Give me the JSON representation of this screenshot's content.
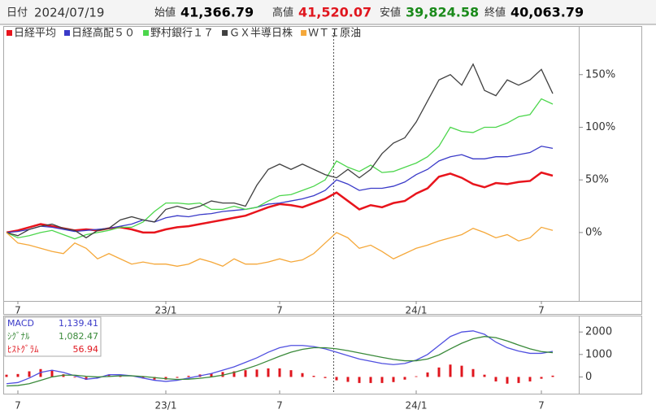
{
  "header": {
    "date_label": "日付",
    "date": "2024/07/19",
    "items": [
      {
        "label": "始値",
        "value": "41,366.79",
        "color": "#000000"
      },
      {
        "label": "高値",
        "value": "41,520.07",
        "color": "#e0161e"
      },
      {
        "label": "安値",
        "value": "39,824.58",
        "color": "#1a8a1a"
      },
      {
        "label": "終値",
        "value": "40,063.79",
        "color": "#000000"
      }
    ]
  },
  "chart_data": [
    {
      "type": "line",
      "categories": [
        null,
        "7",
        null,
        null,
        null,
        null,
        null,
        null,
        null,
        null,
        null,
        null,
        null,
        null,
        "23/1",
        null,
        null,
        null,
        null,
        null,
        null,
        null,
        null,
        null,
        "7",
        null,
        null,
        null,
        null,
        null,
        null,
        null,
        null,
        null,
        null,
        null,
        "24/1",
        null,
        null,
        null,
        null,
        null,
        null,
        null,
        null,
        null,
        null,
        "7",
        null
      ],
      "ylim": [
        -65,
        190
      ],
      "yticks": [
        {
          "value": 150,
          "label": "150%"
        },
        {
          "value": 100,
          "label": "100%"
        },
        {
          "value": 50,
          "label": "50%"
        },
        {
          "value": 0,
          "label": "0%"
        }
      ],
      "series": [
        {
          "name": "日経平均",
          "color": "#e8141c",
          "values": [
            0,
            2,
            5,
            8,
            6,
            4,
            2,
            3,
            2,
            4,
            5,
            3,
            0,
            0,
            3,
            5,
            6,
            8,
            10,
            12,
            14,
            16,
            20,
            24,
            27,
            26,
            24,
            28,
            32,
            38,
            30,
            22,
            26,
            24,
            28,
            30,
            37,
            42,
            53,
            56,
            52,
            46,
            43,
            47,
            46,
            48,
            49,
            57,
            54
          ]
        },
        {
          "name": "日経高配５０",
          "color": "#3a3ac8",
          "values": [
            0,
            1,
            3,
            6,
            5,
            3,
            1,
            2,
            3,
            4,
            6,
            8,
            12,
            10,
            14,
            16,
            15,
            17,
            18,
            20,
            21,
            22,
            24,
            27,
            28,
            30,
            32,
            35,
            40,
            50,
            46,
            40,
            42,
            42,
            44,
            48,
            55,
            60,
            68,
            72,
            74,
            70,
            70,
            72,
            72,
            74,
            76,
            82,
            80
          ]
        },
        {
          "name": "野村銀行１７",
          "color": "#4cd64c",
          "values": [
            0,
            -5,
            -3,
            0,
            2,
            -2,
            -6,
            -2,
            0,
            2,
            5,
            5,
            10,
            20,
            28,
            28,
            27,
            28,
            22,
            22,
            25,
            22,
            24,
            30,
            35,
            36,
            40,
            44,
            50,
            68,
            62,
            58,
            64,
            57,
            58,
            62,
            66,
            72,
            82,
            100,
            96,
            95,
            100,
            100,
            104,
            110,
            112,
            127,
            122
          ]
        },
        {
          "name": "ＧＸ半導日株",
          "color": "#404040",
          "values": [
            0,
            -3,
            3,
            6,
            8,
            4,
            2,
            -5,
            2,
            4,
            12,
            15,
            12,
            10,
            22,
            25,
            22,
            25,
            30,
            28,
            28,
            25,
            45,
            60,
            65,
            60,
            65,
            60,
            55,
            52,
            60,
            52,
            60,
            75,
            85,
            90,
            105,
            125,
            145,
            150,
            140,
            160,
            135,
            130,
            145,
            140,
            145,
            155,
            132
          ]
        },
        {
          "name": "ＷＴＩ原油",
          "color": "#f5a83a",
          "values": [
            0,
            -10,
            -12,
            -15,
            -18,
            -20,
            -10,
            -15,
            -25,
            -20,
            -25,
            -30,
            -28,
            -30,
            -30,
            -32,
            -30,
            -25,
            -28,
            -32,
            -25,
            -30,
            -30,
            -28,
            -25,
            -28,
            -26,
            -20,
            -10,
            0,
            -5,
            -15,
            -12,
            -18,
            -25,
            -20,
            -15,
            -12,
            -8,
            -5,
            -2,
            4,
            0,
            -5,
            -2,
            -8,
            -5,
            5,
            2
          ]
        }
      ]
    },
    {
      "type": "macd",
      "categories": [
        null,
        "7",
        null,
        null,
        null,
        null,
        null,
        null,
        null,
        null,
        null,
        null,
        null,
        null,
        "23/1",
        null,
        null,
        null,
        null,
        null,
        null,
        null,
        null,
        null,
        "7",
        null,
        null,
        null,
        null,
        null,
        null,
        null,
        null,
        null,
        null,
        null,
        "24/1",
        null,
        null,
        null,
        null,
        null,
        null,
        null,
        null,
        null,
        null,
        "7",
        null
      ],
      "ylim": [
        -600,
        2550
      ],
      "yticks": [
        2000,
        1000,
        0
      ],
      "legend": [
        {
          "name": "MACD",
          "value": "1,139.41",
          "color": "#3a3ac8"
        },
        {
          "name": "ｼｸﾞﾅﾙ",
          "value": "1,082.47",
          "color": "#3a8a3a"
        },
        {
          "name": "ﾋｽﾄｸﾞﾗﾑ",
          "value": "56.94",
          "color": "#e0161e"
        }
      ],
      "series": [
        {
          "kind": "line",
          "color": "#5050e0",
          "values": [
            -300,
            -250,
            -50,
            200,
            300,
            200,
            50,
            -100,
            -50,
            100,
            100,
            50,
            -50,
            -150,
            -200,
            -150,
            -50,
            50,
            150,
            300,
            450,
            650,
            850,
            1100,
            1300,
            1400,
            1400,
            1350,
            1250,
            1100,
            950,
            800,
            700,
            600,
            550,
            600,
            750,
            1000,
            1400,
            1800,
            2000,
            2050,
            1900,
            1550,
            1300,
            1150,
            1050,
            1050,
            1139
          ]
        },
        {
          "kind": "line",
          "color": "#3a8a3a",
          "values": [
            -400,
            -380,
            -300,
            -150,
            0,
            80,
            80,
            30,
            0,
            20,
            50,
            50,
            20,
            -30,
            -80,
            -110,
            -100,
            -60,
            0,
            80,
            200,
            350,
            520,
            720,
            920,
            1100,
            1230,
            1300,
            1300,
            1250,
            1170,
            1070,
            970,
            870,
            780,
            720,
            720,
            800,
            980,
            1250,
            1500,
            1700,
            1800,
            1750,
            1600,
            1420,
            1250,
            1130,
            1082
          ]
        },
        {
          "kind": "bar",
          "color": "#e0161e",
          "values": [
            100,
            130,
            250,
            350,
            300,
            120,
            -30,
            -130,
            -50,
            80,
            50,
            0,
            -70,
            -120,
            -120,
            -40,
            50,
            110,
            150,
            220,
            250,
            300,
            330,
            380,
            380,
            300,
            170,
            50,
            -50,
            -150,
            -220,
            -270,
            -270,
            -270,
            -230,
            -120,
            30,
            200,
            420,
            550,
            500,
            350,
            100,
            -200,
            -300,
            -270,
            -200,
            -80,
            57
          ]
        }
      ]
    }
  ]
}
